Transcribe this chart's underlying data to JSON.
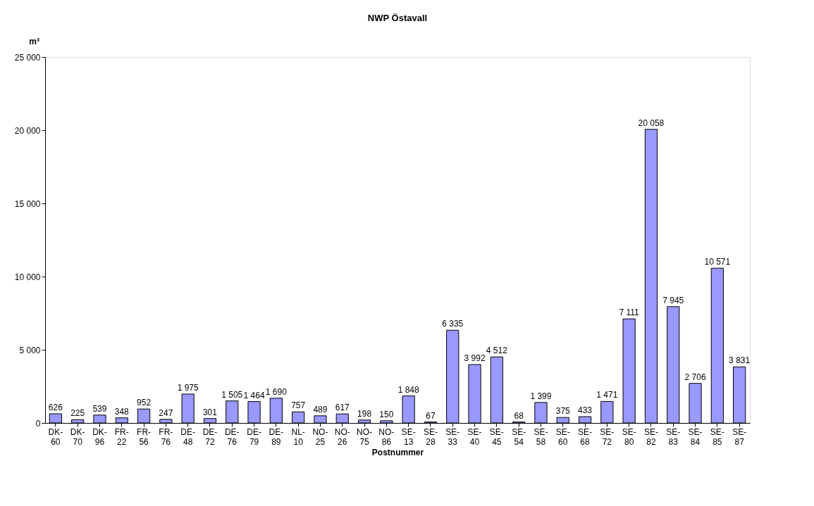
{
  "chart_data": {
    "type": "bar",
    "title": "NWP Östavall",
    "xlabel": "Postnummer",
    "ylabel": "m³",
    "categories": [
      "DK-60",
      "DK-70",
      "DK-96",
      "FR-22",
      "FR-56",
      "FR-76",
      "DE-48",
      "DE-72",
      "DE-76",
      "DE-79",
      "DE-89",
      "NL-10",
      "NO-25",
      "NO-26",
      "NO-75",
      "NO-86",
      "SE-13",
      "SE-28",
      "SE-33",
      "SE-40",
      "SE-45",
      "SE-54",
      "SE-58",
      "SE-60",
      "SE-68",
      "SE-72",
      "SE-80",
      "SE-82",
      "SE-83",
      "SE-84",
      "SE-85",
      "SE-87"
    ],
    "values": [
      626,
      225,
      539,
      348,
      952,
      247,
      1975,
      301,
      1505,
      1464,
      1690,
      757,
      489,
      617,
      198,
      150,
      1848,
      67,
      6335,
      3992,
      4512,
      68,
      1399,
      375,
      433,
      1471,
      7111,
      20058,
      7945,
      2706,
      10571,
      3831
    ],
    "value_labels": [
      "626",
      "225",
      "539",
      "348",
      "952",
      "247",
      "1 975",
      "301",
      "1 505",
      "1 464",
      "1 690",
      "757",
      "489",
      "617",
      "198",
      "150",
      "1 848",
      "67",
      "6 335",
      "3 992",
      "4 512",
      "68",
      "1 399",
      "375",
      "433",
      "1 471",
      "7 111",
      "20 058",
      "7 945",
      "2 706",
      "10 571",
      "3 831"
    ],
    "color": "#9999ff",
    "ylim": [
      0,
      25000
    ],
    "yticks": [
      0,
      {
        "value": 5000,
        "label": "5 000"
      },
      {
        "value": 10000,
        "label": "10 000"
      },
      {
        "value": 15000,
        "label": "15 000"
      },
      {
        "value": 20000,
        "label": "20 000"
      },
      {
        "value": 25000,
        "label": "25 000"
      }
    ],
    "grid": false
  }
}
